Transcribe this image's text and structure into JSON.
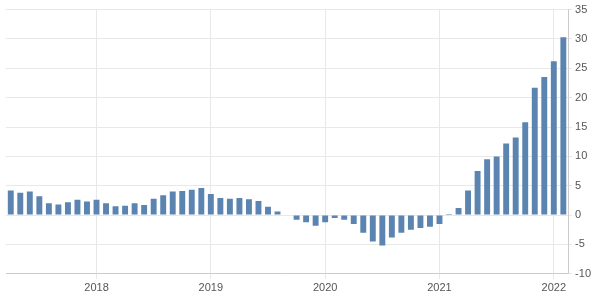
{
  "chart_data": {
    "type": "bar",
    "categories": [
      null,
      null,
      null,
      null,
      null,
      null,
      null,
      null,
      null,
      "2018",
      null,
      null,
      null,
      null,
      null,
      null,
      null,
      null,
      null,
      null,
      null,
      "2019",
      null,
      null,
      null,
      null,
      null,
      null,
      null,
      null,
      null,
      null,
      null,
      "2020",
      null,
      null,
      null,
      null,
      null,
      null,
      null,
      null,
      null,
      null,
      null,
      "2021",
      null,
      null,
      null,
      null,
      null,
      null,
      null,
      null,
      null,
      null,
      null,
      "2022",
      null
    ],
    "values": [
      4.2,
      3.8,
      4.0,
      3.2,
      2.0,
      1.8,
      2.2,
      2.6,
      2.3,
      2.6,
      2.0,
      1.5,
      1.6,
      2.0,
      1.7,
      2.8,
      3.4,
      4.0,
      4.1,
      4.3,
      4.6,
      3.6,
      2.9,
      2.8,
      2.9,
      2.7,
      2.4,
      1.4,
      0.6,
      0.0,
      -0.8,
      -1.2,
      -1.8,
      -1.2,
      -0.5,
      -0.8,
      -1.5,
      -3.0,
      -4.5,
      -5.2,
      -3.8,
      -3.0,
      -2.5,
      -2.2,
      -2.0,
      -1.5,
      0.2,
      1.2,
      4.2,
      7.5,
      9.5,
      10.0,
      12.2,
      13.2,
      15.8,
      21.7,
      23.5,
      26.2,
      30.3
    ],
    "color": "#5b84b1",
    "ylim": [
      -10,
      35
    ],
    "yticks": [
      -10,
      -5,
      0,
      5,
      10,
      15,
      20,
      25,
      30,
      35
    ],
    "grid": true
  }
}
